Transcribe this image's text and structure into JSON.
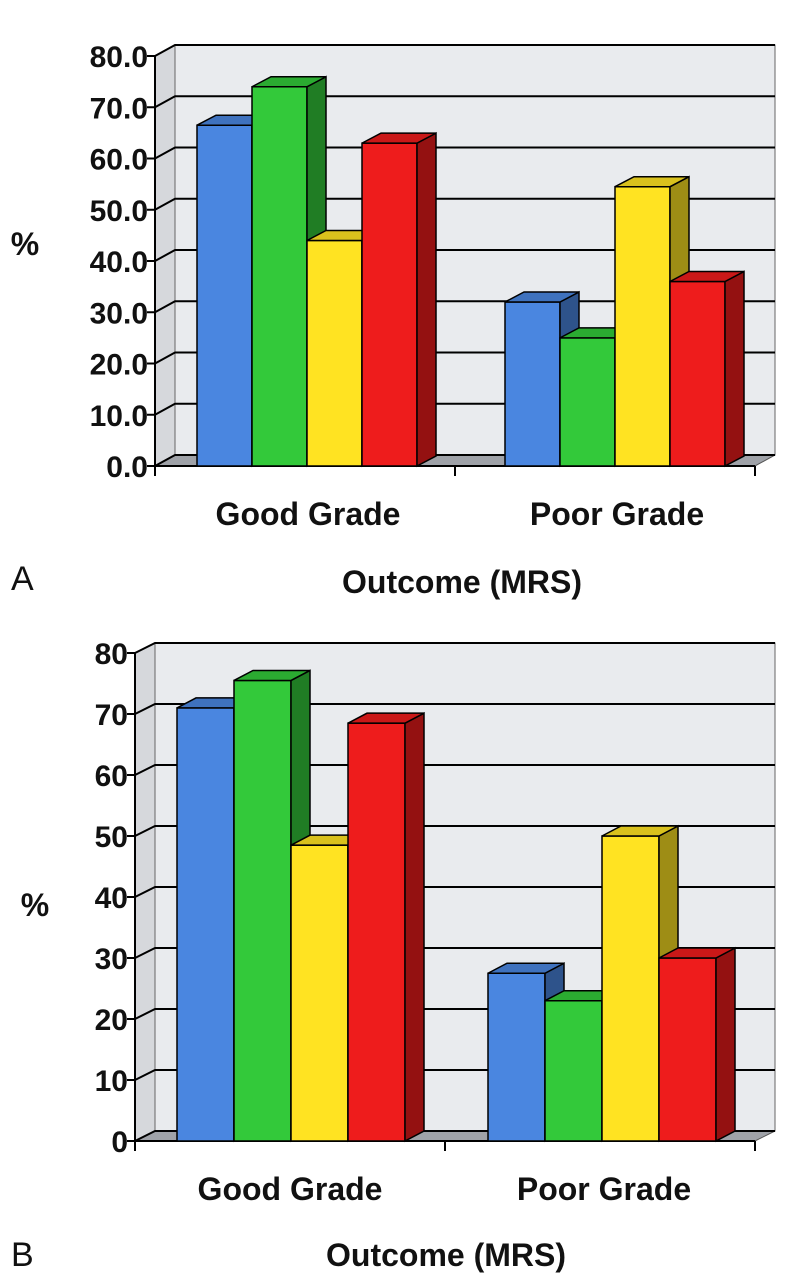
{
  "chart_data": [
    {
      "panel_label": "A",
      "type": "bar",
      "style": "3d-clustered-column",
      "categories": [
        "Good Grade",
        "Poor Grade"
      ],
      "series": [
        {
          "values": [
            66.5,
            32.0
          ],
          "color": "#4a86e0"
        },
        {
          "values": [
            74.0,
            25.0
          ],
          "color": "#33c93a"
        },
        {
          "values": [
            44.0,
            54.5
          ],
          "color": "#ffe322"
        },
        {
          "values": [
            63.0,
            36.0
          ],
          "color": "#ee1c1c"
        }
      ],
      "ylim": [
        0,
        80
      ],
      "yticks": [
        "0.0",
        "10.0",
        "20.0",
        "30.0",
        "40.0",
        "50.0",
        "60.0",
        "70.0",
        "80.0"
      ],
      "ylabel": "%",
      "xlabel": "Outcome (MRS)",
      "grid": true
    },
    {
      "panel_label": "B",
      "type": "bar",
      "style": "3d-clustered-column",
      "categories": [
        "Good Grade",
        "Poor Grade"
      ],
      "series": [
        {
          "values": [
            71.0,
            27.5
          ],
          "color": "#4a86e0"
        },
        {
          "values": [
            75.5,
            23.0
          ],
          "color": "#33c93a"
        },
        {
          "values": [
            48.5,
            50.0
          ],
          "color": "#ffe322"
        },
        {
          "values": [
            68.5,
            30.0
          ],
          "color": "#ee1c1c"
        }
      ],
      "ylim": [
        0,
        80
      ],
      "yticks": [
        "0",
        "10",
        "20",
        "30",
        "40",
        "50",
        "60",
        "70",
        "80"
      ],
      "ylabel": "%",
      "xlabel": "Outcome (MRS)",
      "grid": true
    }
  ]
}
